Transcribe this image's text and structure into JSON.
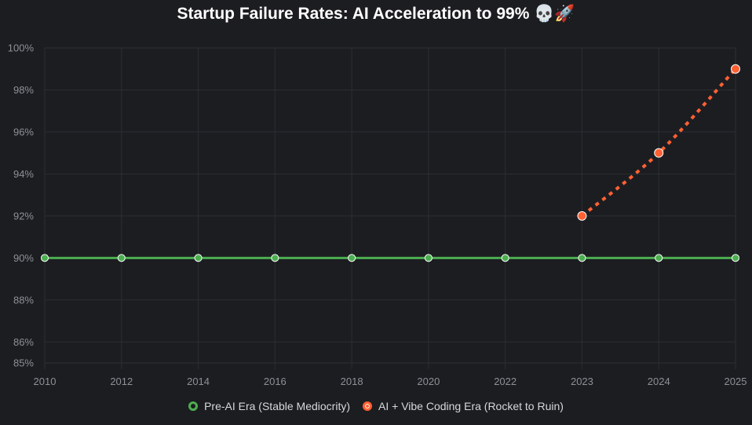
{
  "chart_data": {
    "type": "line",
    "title": "Startup Failure Rates: AI Acceleration to 99% 💀🚀",
    "x_categories": [
      "2010",
      "2012",
      "2014",
      "2016",
      "2018",
      "2020",
      "2022",
      "2023",
      "2024",
      "2025"
    ],
    "y_ticks": [
      "85%",
      "86%",
      "88%",
      "90%",
      "92%",
      "94%",
      "96%",
      "98%",
      "100%"
    ],
    "ylim": [
      85,
      100
    ],
    "grid": true,
    "legend_position": "bottom",
    "series": [
      {
        "name": "Pre-AI Era (Stable Mediocrity)",
        "color": "#4caf50",
        "style": "solid",
        "x": [
          "2010",
          "2012",
          "2014",
          "2016",
          "2018",
          "2020",
          "2022",
          "2023",
          "2024",
          "2025"
        ],
        "values": [
          90,
          90,
          90,
          90,
          90,
          90,
          90,
          90,
          90,
          90
        ]
      },
      {
        "name": "AI + Vibe Coding Era (Rocket to Ruin)",
        "color": "#ff6133",
        "style": "dotted",
        "x": [
          "2023",
          "2024",
          "2025"
        ],
        "values": [
          92,
          95,
          99
        ]
      }
    ]
  }
}
